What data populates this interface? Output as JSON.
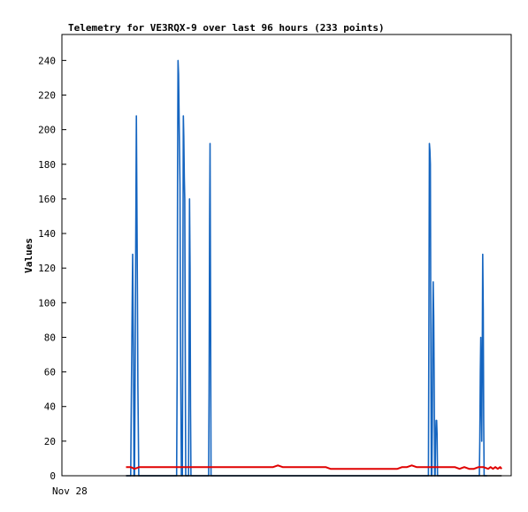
{
  "chart_data": {
    "type": "line",
    "title": "Telemetry for VE3RQX-9 over last 96 hours (233 points)",
    "xlabel": "",
    "ylabel": "Values",
    "x_tick_labels": [
      "Nov 28"
    ],
    "y_ticks": [
      0,
      20,
      40,
      60,
      80,
      100,
      120,
      140,
      160,
      180,
      200,
      220,
      240
    ],
    "ylim": [
      0,
      255
    ],
    "grid": false,
    "legend": "none",
    "x_unit": "hours",
    "xlim": [
      0,
      96
    ],
    "series": [
      {
        "color": "#1565c0",
        "x": [
          13.7,
          14.71,
          14.8,
          15.01,
          15.11,
          15.31,
          15.41,
          15.51,
          15.62,
          15.82,
          15.92,
          16.13,
          16.23,
          16.43,
          16.53,
          16.63,
          16.74,
          16.94,
          24.41,
          24.51,
          24.62,
          24.72,
          24.82,
          24.92,
          25.02,
          25.13,
          25.23,
          25.33,
          25.43,
          25.54,
          25.64,
          25.74,
          25.84,
          25.94,
          26.05,
          26.15,
          26.25,
          26.35,
          26.46,
          26.56,
          26.66,
          26.76,
          26.87,
          26.97,
          27.07,
          27.17,
          27.27,
          27.38,
          27.48,
          27.58,
          27.68,
          28.09,
          28.19,
          28.3,
          28.4,
          28.5,
          28.6,
          28.71,
          31.35,
          31.45,
          31.55,
          31.66,
          31.76,
          31.86,
          31.96,
          32.07,
          78.22,
          78.32,
          78.42,
          78.52,
          78.63,
          78.73,
          78.83,
          78.93,
          79.04,
          79.14,
          79.24,
          79.34,
          79.45,
          79.55,
          79.65,
          79.75,
          79.86,
          79.96,
          80.06,
          80.16,
          80.26,
          80.37,
          80.47,
          80.57,
          80.67,
          80.78,
          80.88,
          80.98,
          81.08,
          81.18,
          81.29,
          81.39,
          81.49,
          89.2,
          89.3,
          89.4,
          89.5,
          89.61,
          89.71,
          89.81,
          89.91,
          90.02,
          90.12,
          90.22,
          90.32,
          90.43,
          90.53,
          90.63,
          90.73,
          90.84
        ],
        "y": [
          0,
          0,
          32,
          96,
          128,
          64,
          0,
          0,
          52,
          156,
          208,
          104,
          52,
          0,
          0,
          0,
          0,
          0,
          0,
          0,
          60,
          180,
          240,
          232,
          212,
          188,
          168,
          84,
          40,
          0,
          0,
          0,
          104,
          208,
          196,
          172,
          160,
          80,
          0,
          0,
          0,
          0,
          0,
          0,
          0,
          80,
          160,
          120,
          40,
          0,
          0,
          0,
          0,
          0,
          0,
          0,
          0,
          0,
          0,
          48,
          144,
          192,
          96,
          0,
          0,
          0,
          0,
          0,
          96,
          192,
          188,
          180,
          88,
          0,
          0,
          28,
          84,
          112,
          92,
          48,
          0,
          0,
          24,
          32,
          32,
          24,
          0,
          0,
          0,
          0,
          0,
          0,
          0,
          0,
          0,
          0,
          0,
          0,
          0,
          0,
          20,
          60,
          80,
          40,
          20,
          60,
          128,
          96,
          32,
          0,
          0,
          0,
          0,
          0,
          0,
          0
        ]
      },
      {
        "color": "#e00000",
        "x": [
          13.7,
          14.71,
          15.51,
          16.53,
          17.55,
          18.57,
          19.59,
          20.61,
          21.63,
          22.66,
          23.68,
          24.7,
          25.72,
          26.74,
          27.76,
          28.78,
          29.8,
          30.83,
          31.85,
          32.87,
          33.89,
          34.91,
          35.93,
          36.95,
          37.97,
          39.0,
          40.02,
          41.04,
          42.06,
          43.08,
          44.1,
          45.12,
          46.14,
          47.17,
          48.19,
          49.21,
          50.23,
          51.25,
          52.27,
          53.29,
          54.31,
          55.34,
          56.36,
          57.38,
          58.4,
          59.42,
          60.44,
          61.46,
          62.48,
          63.51,
          64.53,
          65.55,
          66.57,
          67.59,
          68.61,
          69.63,
          70.65,
          71.68,
          72.7,
          73.73,
          74.75,
          75.77,
          76.79,
          77.81,
          78.84,
          79.86,
          80.88,
          81.9,
          82.92,
          83.94,
          84.96,
          85.98,
          87.0,
          88.02,
          89.04,
          90.07,
          91.09,
          91.6,
          92.11,
          92.62,
          93.13,
          93.64,
          93.95
        ],
        "y": [
          5,
          5,
          4,
          5,
          5,
          5,
          5,
          5,
          5,
          5,
          5,
          5,
          5,
          5,
          5,
          5,
          5,
          5,
          5,
          5,
          5,
          5,
          5,
          5,
          5,
          5,
          5,
          5,
          5,
          5,
          5,
          5,
          6,
          5,
          5,
          5,
          5,
          5,
          5,
          5,
          5,
          5,
          5,
          4,
          4,
          4,
          4,
          4,
          4,
          4,
          4,
          4,
          4,
          4,
          4,
          4,
          4,
          4,
          5,
          5,
          6,
          5,
          5,
          5,
          5,
          5,
          5,
          5,
          5,
          5,
          4,
          5,
          4,
          4,
          5,
          5,
          4,
          5,
          4,
          5,
          4,
          5,
          4
        ]
      },
      {
        "color": "#000000",
        "x": [
          13.7,
          93.95
        ],
        "y": [
          0,
          0
        ]
      }
    ]
  }
}
